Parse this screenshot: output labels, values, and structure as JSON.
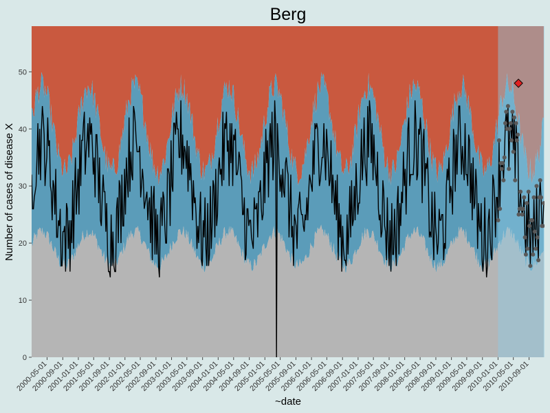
{
  "chart_data": {
    "type": "area",
    "title": "Berg",
    "xlabel": "~date",
    "ylabel": "Number of cases of disease X",
    "ylim": [
      0,
      58
    ],
    "xlim": [
      "2000-01-01",
      "2010-12-31"
    ],
    "monitoring_start": "2010-01-01",
    "y_ticks": [
      0,
      10,
      20,
      30,
      40,
      50
    ],
    "x_ticks": [
      "2000-05-01",
      "2000-09-01",
      "2001-01-01",
      "2001-05-01",
      "2001-09-01",
      "2002-01-01",
      "2002-05-01",
      "2002-09-01",
      "2003-01-01",
      "2003-05-01",
      "2003-09-01",
      "2004-01-01",
      "2004-05-01",
      "2004-09-01",
      "2005-01-01",
      "2005-05-01",
      "2005-09-01",
      "2006-01-01",
      "2006-05-01",
      "2006-09-01",
      "2007-01-01",
      "2007-05-01",
      "2007-09-01",
      "2008-01-01",
      "2008-05-01",
      "2008-09-01",
      "2009-01-01",
      "2009-05-01",
      "2009-09-01",
      "2010-01-01",
      "2010-05-01",
      "2010-09-01"
    ],
    "band_top": 58,
    "peak_years": [
      2000,
      2001,
      2002,
      2003,
      2004,
      2005,
      2006,
      2007,
      2008,
      2009,
      2010
    ],
    "lower_band": {
      "base": 19,
      "amplitude": 3.0
    },
    "upper_band": {
      "base": 40,
      "amplitude": 7.5
    },
    "observed": {
      "base": 29.5,
      "amplitude": 8.5,
      "dip_date": "2005-04-01",
      "dip_value": 0
    },
    "alarm": {
      "date": "2010-06-10",
      "value": 48
    },
    "colors": {
      "background": "#d9e8e8",
      "grey_band": "#b5b5b5",
      "blue_band": "#5b9cb9",
      "red_band": "#c9593f",
      "monitor_grey": "#b8bebf",
      "monitor_blue": "#8fcbe6",
      "monitor_red": "#f3896e",
      "line": "#000000",
      "points": "#595959",
      "alarm": "#e02020"
    }
  }
}
